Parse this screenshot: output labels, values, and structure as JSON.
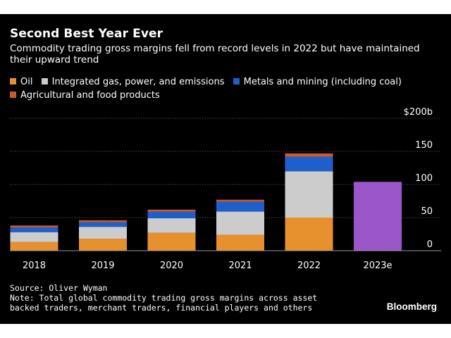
{
  "chart_data": {
    "type": "bar",
    "stacked": true,
    "title": "Second Best Year Ever",
    "subtitle": "Commodity trading gross margins fell from record levels in 2022 but have maintained their upward trend",
    "categories": [
      "2018",
      "2019",
      "2020",
      "2021",
      "2022",
      "2023e"
    ],
    "series": [
      {
        "name": "Oil",
        "color": "#e6902e",
        "values": [
          13,
          18,
          27,
          24,
          50,
          null
        ]
      },
      {
        "name": "Integrated gas, power, and emissions",
        "color": "#cccccc",
        "values": [
          15,
          18,
          22,
          35,
          70,
          null
        ]
      },
      {
        "name": "Metals and mining (including coal)",
        "color": "#1f5fcc",
        "values": [
          7,
          7,
          10,
          15,
          22,
          null
        ]
      },
      {
        "name": "Agricultural and food products",
        "color": "#c85a32",
        "values": [
          3,
          3,
          3,
          3,
          5,
          null
        ]
      }
    ],
    "totals_only": [
      {
        "category": "2023e",
        "value": 104,
        "color": "#9b57c9"
      }
    ],
    "ylim": [
      0,
      200
    ],
    "yticks": [
      {
        "value": 0,
        "label": "0"
      },
      {
        "value": 50,
        "label": "50"
      },
      {
        "value": 100,
        "label": "100"
      },
      {
        "value": 150,
        "label": "150"
      },
      {
        "value": 200,
        "label": "$200b"
      }
    ],
    "grid": true,
    "legend_position": "top-left",
    "xlabel": "",
    "ylabel": ""
  },
  "source": "Source: Oliver Wyman",
  "note": "Note: Total global commodity trading gross margins across asset backed traders, merchant traders, financial players and others",
  "brand": "Bloomberg",
  "colors": {
    "background": "#000000",
    "text": "#ffffff",
    "grid": "#4a4a4a"
  }
}
